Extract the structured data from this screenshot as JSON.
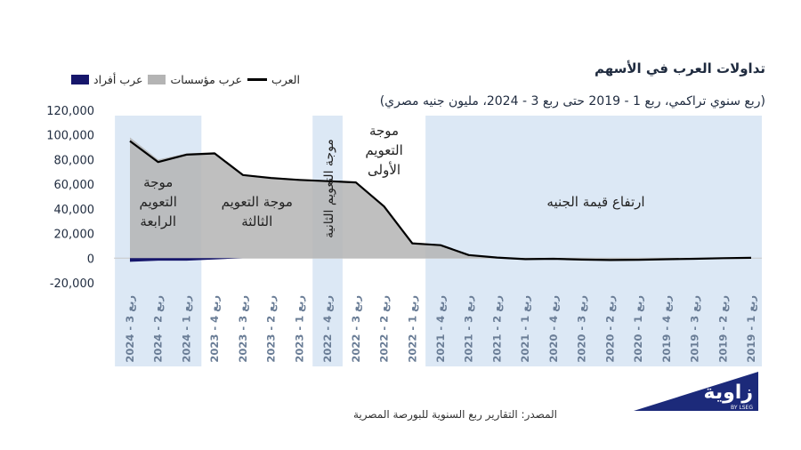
{
  "title": "تداولات العرب في الأسهم",
  "subtitle": "(ربع سنوي تراكمي، ربع 1 - 2019 حتى ربع 3 - 2024،    مليون جنيه مصري)",
  "legend": {
    "arab_total": "العرب",
    "arab_institutions": "عرب مؤسسات",
    "arab_individuals": "عرب أفراد"
  },
  "source": "المصدر:  التقارير ربع السنوية للبورصة المصرية",
  "logo": {
    "text": "زاوية",
    "sub": "BY LSEG"
  },
  "colors": {
    "band": "#dce8f5",
    "area_gray": "#b4b4b4",
    "navy": "#16166b",
    "line": "#000000",
    "text": "#1f2b3f"
  },
  "chart_data": {
    "type": "area",
    "direction": "reversed-x (newest quarter on the left)",
    "categories": [
      "ربع 3 - 2024",
      "ربع 2 - 2024",
      "ربع 1 - 2024",
      "ربع 4 - 2023",
      "ربع 3 - 2023",
      "ربع 2 - 2023",
      "ربع 1 - 2023",
      "ربع 4 - 2022",
      "ربع 3 - 2022",
      "ربع 2 - 2022",
      "ربع 1 - 2022",
      "ربع 4 - 2021",
      "ربع 3 - 2021",
      "ربع 2 - 2021",
      "ربع 1 - 2021",
      "ربع 4 - 2020",
      "ربع 3 - 2020",
      "ربع 2 - 2020",
      "ربع 1 - 2020",
      "ربع 4 - 2019",
      "ربع 3 - 2019",
      "ربع 2 - 2019",
      "ربع 1 - 2019"
    ],
    "series": [
      {
        "name": "عرب مؤسسات",
        "type": "area",
        "values": [
          98000,
          80000,
          85000,
          86000,
          68000,
          66000,
          64000,
          63000,
          62000,
          43000,
          13000,
          11000,
          3000,
          1000,
          0,
          0,
          -1000,
          -1000,
          -1000,
          -500,
          0,
          0,
          0
        ]
      },
      {
        "name": "عرب أفراد",
        "type": "area",
        "values": [
          -3000,
          -2000,
          -2000,
          -1000,
          0,
          0,
          0,
          0,
          0,
          0,
          0,
          0,
          0,
          0,
          0,
          0,
          0,
          0,
          0,
          0,
          0,
          0,
          0
        ]
      },
      {
        "name": "العرب",
        "type": "line",
        "values": [
          95000,
          78000,
          84000,
          85000,
          67500,
          65000,
          63500,
          62500,
          61500,
          42000,
          12000,
          10500,
          2500,
          500,
          -800,
          -500,
          -1200,
          -1500,
          -1300,
          -900,
          -500,
          0,
          300
        ]
      }
    ],
    "yticks": [
      "120,000",
      "100,000",
      "80,000",
      "60,000",
      "40,000",
      "20,000",
      "0",
      "-20,000"
    ],
    "ylim": [
      -20000,
      120000
    ],
    "ylabel": "",
    "xlabel": "",
    "annotations": [
      {
        "text": [
          "موجة",
          "التعويم",
          "الرابعة"
        ],
        "from": 0,
        "to": 2
      },
      {
        "text": [
          "موجة التعويم",
          "الثالثة"
        ],
        "from": 3,
        "to": 6
      },
      {
        "text": [
          "موجة التعويم الثانية"
        ],
        "from": 7,
        "to": 7,
        "vertical": true
      },
      {
        "text": [
          "موجة",
          "التعويم",
          "الأولى"
        ],
        "from": 8,
        "to": 10
      },
      {
        "text": [
          "ارتفاع قيمة الجنيه"
        ],
        "from": 11,
        "to": 22
      }
    ],
    "bands": [
      {
        "from": 0,
        "to": 2
      },
      {
        "from": 7,
        "to": 7
      },
      {
        "from": 11,
        "to": 22
      }
    ]
  }
}
